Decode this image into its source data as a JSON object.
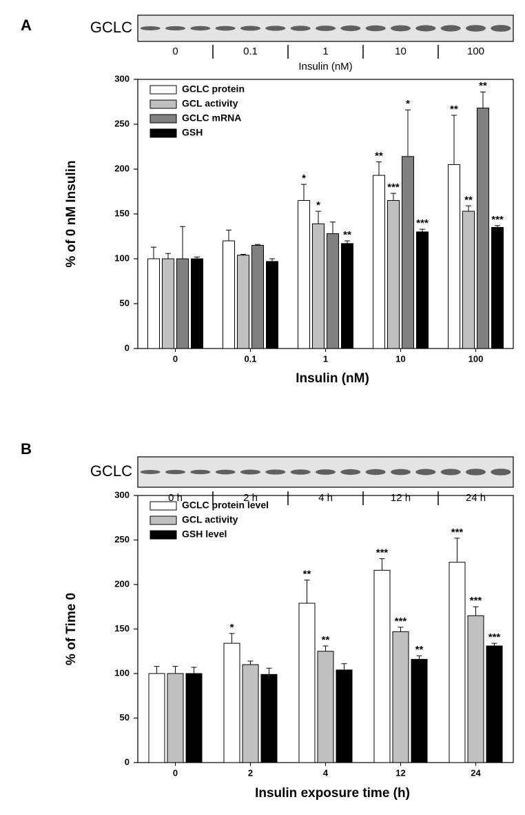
{
  "chart_data": [
    {
      "type": "bar",
      "panel_label": "A",
      "blot_label": "GCLC",
      "blot_lanes": [
        "0",
        "0.1",
        "1",
        "10",
        "100"
      ],
      "blot_axis_label": "Insulin (nM)",
      "x_label": "Insulin (nM)",
      "y_label": "% of 0 nM Insulin",
      "categories": [
        "0",
        "0.1",
        "1",
        "10",
        "100"
      ],
      "ylim": [
        0,
        300
      ],
      "yticks": [
        0,
        50,
        100,
        150,
        200,
        250,
        300
      ],
      "legend": "upper left",
      "series": [
        {
          "name": "GCLC protein",
          "color": "#ffffff",
          "values": [
            100,
            120,
            165,
            193,
            205
          ],
          "errors": [
            13,
            12,
            18,
            15,
            55
          ],
          "stars": [
            null,
            null,
            "*",
            "**",
            "**"
          ]
        },
        {
          "name": "GCL activity",
          "color": "#c0c0c0",
          "values": [
            100,
            104,
            139,
            165,
            153
          ],
          "errors": [
            6,
            1,
            14,
            8,
            6
          ],
          "stars": [
            null,
            null,
            "*",
            "***",
            "**"
          ]
        },
        {
          "name": "GCLC mRNA",
          "color": "#808080",
          "values": [
            100,
            115,
            128,
            214,
            268
          ],
          "errors": [
            36,
            1,
            13,
            52,
            18
          ],
          "stars": [
            null,
            null,
            null,
            "*",
            "**"
          ]
        },
        {
          "name": "GSH",
          "color": "#000000",
          "values": [
            100,
            97,
            117,
            130,
            135
          ],
          "errors": [
            2,
            3,
            3,
            3,
            2
          ],
          "stars": [
            null,
            null,
            "**",
            "***",
            "***"
          ]
        }
      ]
    },
    {
      "type": "bar",
      "panel_label": "B",
      "blot_label": "GCLC",
      "blot_lanes": [
        "0 h",
        "2 h",
        "4 h",
        "12 h",
        "24 h"
      ],
      "x_label": "Insulin exposure time (h)",
      "y_label": "% of Time 0",
      "categories": [
        "0",
        "2",
        "4",
        "12",
        "24"
      ],
      "ylim": [
        0,
        300
      ],
      "yticks": [
        0,
        50,
        100,
        150,
        200,
        250,
        300
      ],
      "legend": "upper left",
      "series": [
        {
          "name": "GCLC protein level",
          "color": "#ffffff",
          "values": [
            100,
            134,
            179,
            216,
            225
          ],
          "errors": [
            8,
            11,
            26,
            13,
            27
          ],
          "stars": [
            null,
            "*",
            "**",
            "***",
            "***"
          ]
        },
        {
          "name": "GCL activity",
          "color": "#c0c0c0",
          "values": [
            100,
            110,
            125,
            147,
            165
          ],
          "errors": [
            8,
            4,
            6,
            5,
            10
          ],
          "stars": [
            null,
            null,
            "**",
            "***",
            "***"
          ]
        },
        {
          "name": "GSH level",
          "color": "#000000",
          "values": [
            100,
            99,
            104,
            116,
            131
          ],
          "errors": [
            7,
            7,
            7,
            4,
            3
          ],
          "stars": [
            null,
            null,
            null,
            "**",
            "***"
          ]
        }
      ]
    }
  ]
}
